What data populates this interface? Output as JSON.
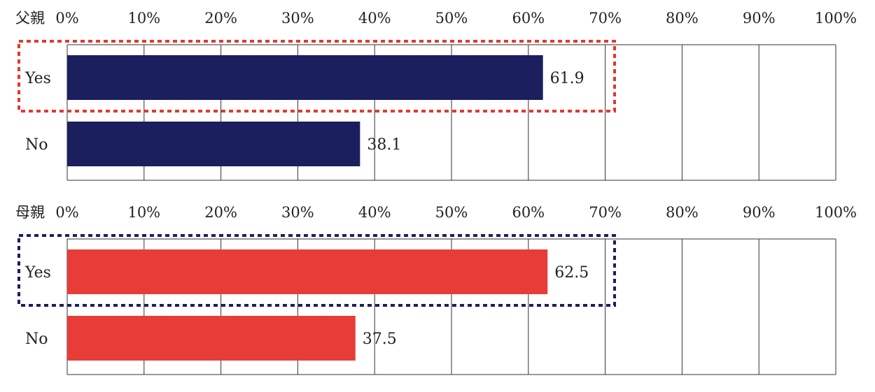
{
  "chart_data": [
    {
      "type": "bar",
      "orientation": "horizontal",
      "title": "父親",
      "categories": [
        "Yes",
        "No"
      ],
      "values": [
        61.9,
        38.1
      ],
      "value_labels": [
        "61.9",
        "38.1"
      ],
      "xlim": [
        0,
        100
      ],
      "tick_labels": [
        "0%",
        "10%",
        "20%",
        "30%",
        "40%",
        "50%",
        "60%",
        "70%",
        "80%",
        "90%",
        "100%"
      ],
      "grid": true,
      "bar_color": "#1b1f5e",
      "highlight": {
        "category": "Yes",
        "style": "dotted",
        "color": "#e03a2f"
      }
    },
    {
      "type": "bar",
      "orientation": "horizontal",
      "title": "母親",
      "categories": [
        "Yes",
        "No"
      ],
      "values": [
        62.5,
        37.5
      ],
      "value_labels": [
        "62.5",
        "37.5"
      ],
      "xlim": [
        0,
        100
      ],
      "tick_labels": [
        "0%",
        "10%",
        "20%",
        "30%",
        "40%",
        "50%",
        "60%",
        "70%",
        "80%",
        "90%",
        "100%"
      ],
      "grid": true,
      "bar_color": "#e83c38",
      "highlight": {
        "category": "Yes",
        "style": "dotted",
        "color": "#1b1f5e"
      }
    }
  ]
}
